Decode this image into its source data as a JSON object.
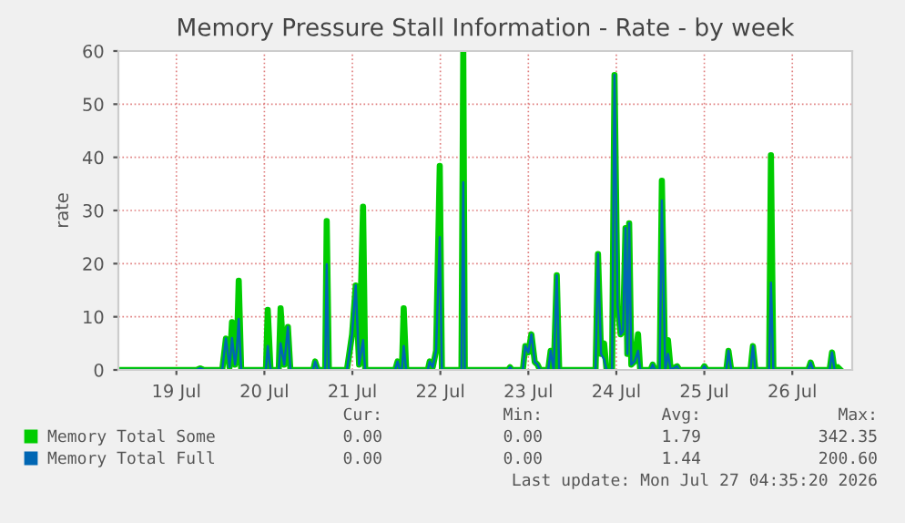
{
  "chart_data": {
    "type": "line",
    "title": "Memory Pressure Stall Information - Rate - by week",
    "ylabel": "rate",
    "x": [
      "2026-07-18T20:10",
      "2026-07-19T17:30",
      "2026-07-19T18:30",
      "2026-07-19T19:30",
      "2026-07-20T00:30",
      "2026-07-20T01:30",
      "2026-07-20T02:30",
      "2026-07-20T03:10",
      "2026-07-20T04:00",
      "2026-07-20T04:30",
      "2026-07-20T05:00",
      "2026-07-20T05:40",
      "2026-07-20T12:25",
      "2026-07-20T12:55",
      "2026-07-20T13:40",
      "2026-07-20T15:55",
      "2026-07-20T16:25",
      "2026-07-20T17:25",
      "2026-07-20T18:25",
      "2026-07-20T19:05",
      "2026-07-21T01:20",
      "2026-07-21T01:50",
      "2026-07-21T02:35",
      "2026-07-21T04:35",
      "2026-07-21T05:00",
      "2026-07-21T05:35",
      "2026-07-21T10:30",
      "2026-07-21T11:05",
      "2026-07-21T11:55",
      "2026-07-21T12:55",
      "2026-07-21T13:50",
      "2026-07-21T14:55",
      "2026-07-21T15:30",
      "2026-07-21T23:40",
      "2026-07-22T00:20",
      "2026-07-22T00:55",
      "2026-07-22T01:30",
      "2026-07-22T02:00",
      "2026-07-22T02:40",
      "2026-07-22T08:35",
      "2026-07-22T09:05",
      "2026-07-22T09:55",
      "2026-07-22T10:50",
      "2026-07-22T11:50",
      "2026-07-22T12:25",
      "2026-07-22T17:45",
      "2026-07-22T18:15",
      "2026-07-22T18:40",
      "2026-07-23T06:30",
      "2026-07-23T07:00",
      "2026-07-23T07:30",
      "2026-07-23T10:30",
      "2026-07-23T11:10",
      "2026-07-23T12:00",
      "2026-07-23T12:50",
      "2026-07-23T13:45",
      "2026-07-23T14:30",
      "2026-07-23T15:10",
      "2026-07-23T17:25",
      "2026-07-23T18:05",
      "2026-07-23T18:55",
      "2026-07-23T19:45",
      "2026-07-23T20:25",
      "2026-07-24T06:20",
      "2026-07-24T07:00",
      "2026-07-24T07:50",
      "2026-07-24T08:40",
      "2026-07-24T09:20",
      "2026-07-24T10:50",
      "2026-07-24T11:30",
      "2026-07-24T12:20",
      "2026-07-24T13:10",
      "2026-07-24T13:50",
      "2026-07-24T14:30",
      "2026-07-24T15:00",
      "2026-07-24T15:30",
      "2026-07-24T16:05",
      "2026-07-24T17:00",
      "2026-07-24T17:55",
      "2026-07-24T18:30",
      "2026-07-24T21:20",
      "2026-07-24T21:55",
      "2026-07-24T22:35",
      "2026-07-24T23:50",
      "2026-07-25T00:25",
      "2026-07-25T01:20",
      "2026-07-25T02:05",
      "2026-07-25T02:50",
      "2026-07-25T04:35",
      "2026-07-25T05:10",
      "2026-07-25T11:25",
      "2026-07-25T12:00",
      "2026-07-25T12:40",
      "2026-07-25T18:00",
      "2026-07-25T18:35",
      "2026-07-25T19:20",
      "2026-07-26T00:35",
      "2026-07-26T01:15",
      "2026-07-26T01:55",
      "2026-07-26T05:40",
      "2026-07-26T06:10",
      "2026-07-26T06:50",
      "2026-07-26T16:20",
      "2026-07-26T17:00",
      "2026-07-26T17:40",
      "2026-07-26T22:10",
      "2026-07-26T22:50",
      "2026-07-26T23:30",
      "2026-07-27T00:25",
      "2026-07-27T01:10"
    ],
    "series": [
      {
        "name": "Memory Total Some",
        "color": "#00cc00",
        "values": [
          0,
          0,
          0.3,
          0,
          0,
          5.9,
          0.5,
          9,
          1,
          3.9,
          16.8,
          0,
          0,
          11.3,
          0,
          0,
          11.6,
          1,
          8.1,
          0,
          0,
          1.6,
          0,
          0,
          28,
          0,
          0,
          2.7,
          6.7,
          15.9,
          1,
          30.7,
          0,
          0,
          1.6,
          0,
          0,
          11.6,
          0,
          0,
          1.6,
          0.5,
          3.6,
          38.4,
          0,
          0,
          60,
          0,
          0,
          0.5,
          0,
          0,
          4.5,
          3.3,
          6.7,
          1.5,
          1,
          0,
          0,
          3.6,
          0,
          17.8,
          0,
          0,
          21.8,
          3,
          5,
          0,
          0,
          55.5,
          11.9,
          6.7,
          7.3,
          26.7,
          3,
          27.6,
          1,
          1.6,
          6.7,
          0,
          0,
          1,
          0,
          0,
          35.6,
          0,
          5.6,
          0,
          0.7,
          0,
          0,
          0.7,
          0,
          0,
          3.6,
          0,
          0,
          4.5,
          0,
          0,
          40.4,
          0,
          0,
          1.4,
          0,
          0,
          3.3,
          0,
          0.5,
          0
        ]
      },
      {
        "name": "Memory Total Full",
        "color": "#0066b3",
        "values": [
          0,
          0,
          0.3,
          0,
          0,
          5.9,
          0.5,
          6,
          1,
          3.9,
          9.6,
          0,
          0,
          4.5,
          0,
          0,
          5,
          1,
          8.1,
          0,
          0,
          1.6,
          0,
          0,
          19.9,
          0,
          0,
          2.7,
          6.7,
          15.9,
          1,
          5.6,
          0,
          0,
          1.6,
          0,
          0,
          4.5,
          0,
          0,
          1.6,
          0.5,
          3.6,
          25,
          0,
          0,
          35.3,
          0,
          0,
          0.5,
          0,
          0,
          4.5,
          3.3,
          6.7,
          1.5,
          1,
          0,
          0,
          3.6,
          0,
          17.8,
          0,
          0,
          21.8,
          3,
          2,
          0,
          0,
          55.5,
          11.9,
          6.7,
          7.3,
          26.7,
          3,
          27.6,
          1,
          1.6,
          3.6,
          0,
          0,
          1,
          0,
          0,
          31.9,
          0,
          3,
          0,
          0.7,
          0,
          0,
          0.7,
          0,
          0,
          3.6,
          0,
          0,
          4.5,
          0,
          0,
          16.4,
          0,
          0,
          1.4,
          0,
          0,
          3.3,
          0,
          0,
          0
        ]
      }
    ],
    "xlim": [
      "2026-07-18T20:10",
      "2026-07-27T04:20"
    ],
    "xticks": [
      {
        "value": "2026-07-19T12:00",
        "label": "19 Jul"
      },
      {
        "value": "2026-07-20T12:00",
        "label": "20 Jul"
      },
      {
        "value": "2026-07-21T12:00",
        "label": "21 Jul"
      },
      {
        "value": "2026-07-22T12:00",
        "label": "22 Jul"
      },
      {
        "value": "2026-07-23T12:00",
        "label": "23 Jul"
      },
      {
        "value": "2026-07-24T12:00",
        "label": "24 Jul"
      },
      {
        "value": "2026-07-25T12:00",
        "label": "25 Jul"
      },
      {
        "value": "2026-07-26T12:00",
        "label": "26 Jul"
      }
    ],
    "ylim": [
      0,
      60
    ],
    "yticks": [
      0,
      10,
      20,
      30,
      40,
      50,
      60
    ],
    "grid": true,
    "legend": "bottom",
    "annotations": [
      "Cur:",
      "Min:",
      "Avg:",
      "Max:",
      "0.00",
      "0.00",
      "1.79",
      "342.35",
      "0.00",
      "0.00",
      "1.44",
      "200.60",
      "Last update: Mon Jul 27 04:35:20 2026"
    ]
  }
}
